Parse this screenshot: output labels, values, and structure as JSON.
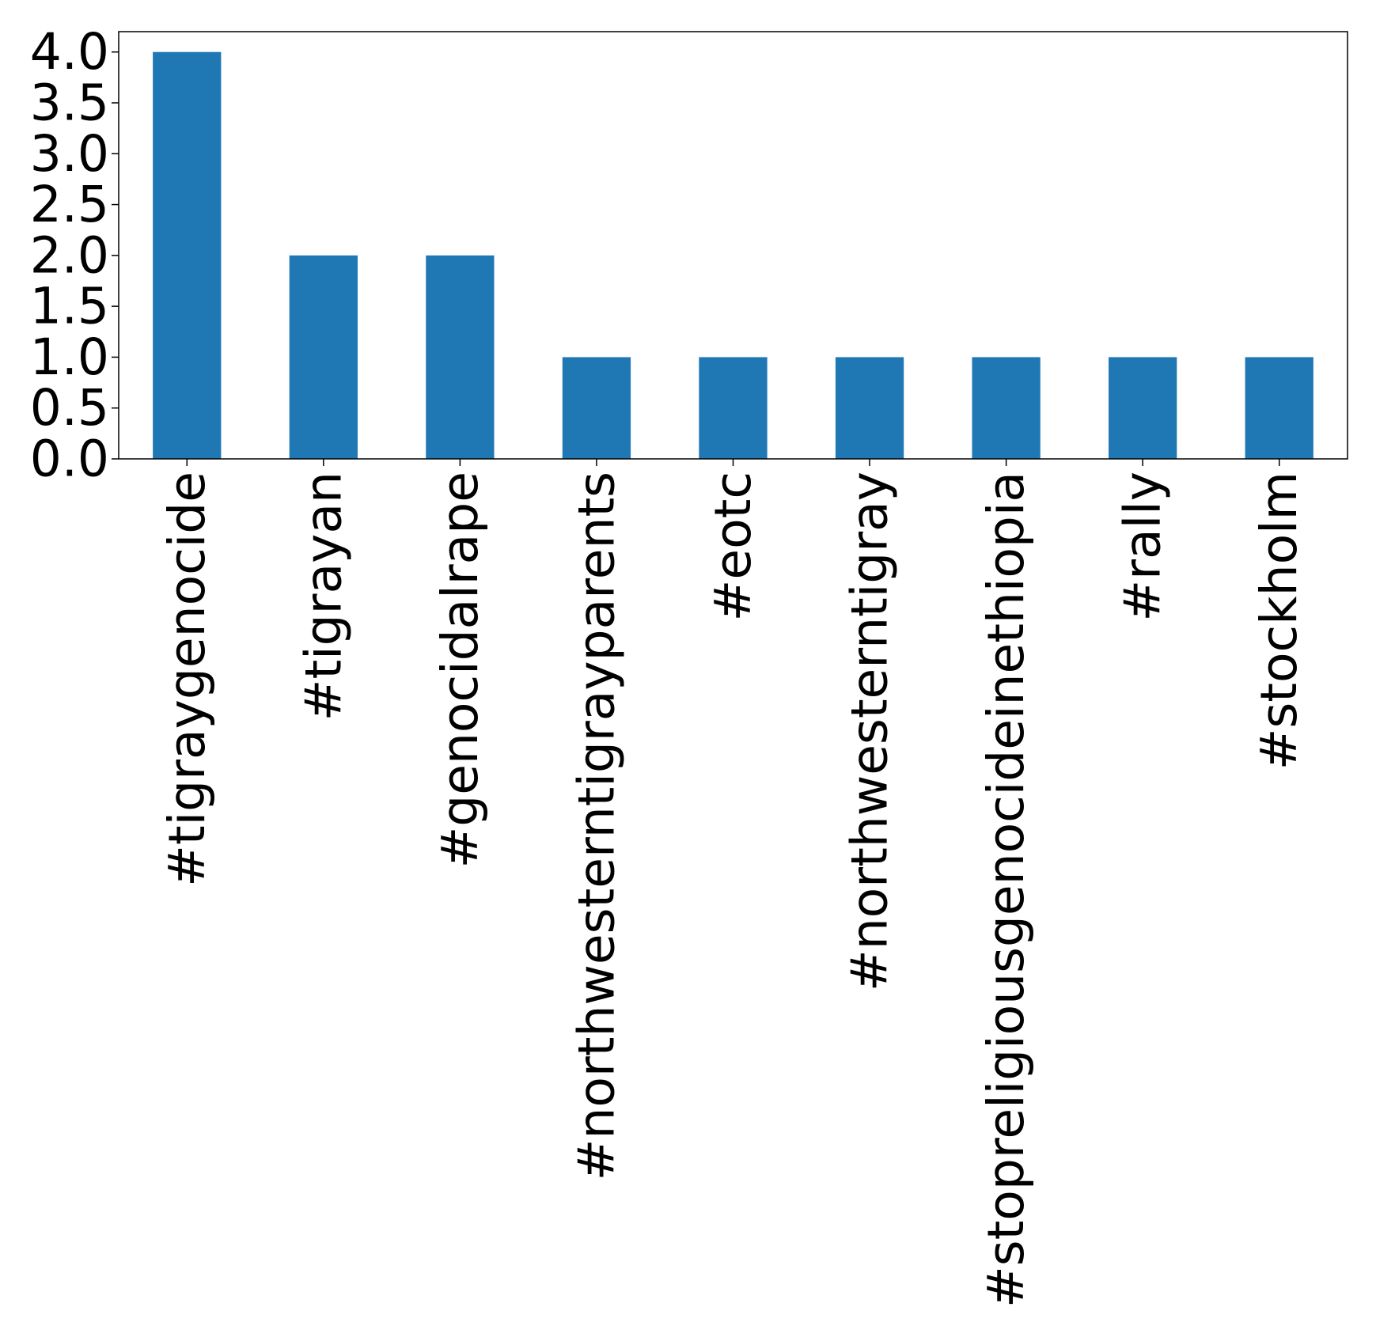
{
  "chart_data": {
    "type": "bar",
    "categories": [
      "#tigraygenocide",
      "#tigrayan",
      "#genocidalrape",
      "#northwesterntigrayparents",
      "#eotc",
      "#northwesterntigray",
      "#stopreligiousgenocideinethiopia",
      "#rally",
      "#stockholm"
    ],
    "values": [
      4,
      2,
      2,
      1,
      1,
      1,
      1,
      1,
      1
    ],
    "yticks": [
      "0.0",
      "0.5",
      "1.0",
      "1.5",
      "2.0",
      "2.5",
      "3.0",
      "3.5",
      "4.0"
    ],
    "ylim": [
      0,
      4.2
    ],
    "title": "",
    "xlabel": "",
    "ylabel": "",
    "grid": false,
    "bar_color": "#1f77b4"
  }
}
